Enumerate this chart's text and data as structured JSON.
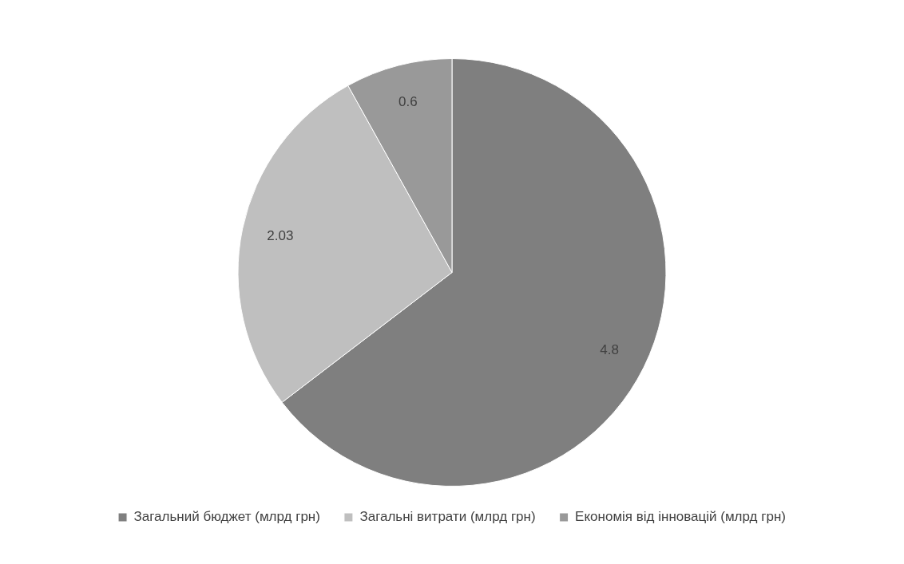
{
  "chart_data": {
    "type": "pie",
    "categories": [
      "Загальний бюджет (млрд грн)",
      "Загальні витрати (млрд грн)",
      "Економія від інновацій (млрд грн)"
    ],
    "values": [
      4.8,
      2.03,
      0.6
    ],
    "colors": [
      "#7f7f7f",
      "#bfbfbf",
      "#999999"
    ],
    "data_labels": true,
    "legend": "bottom"
  }
}
